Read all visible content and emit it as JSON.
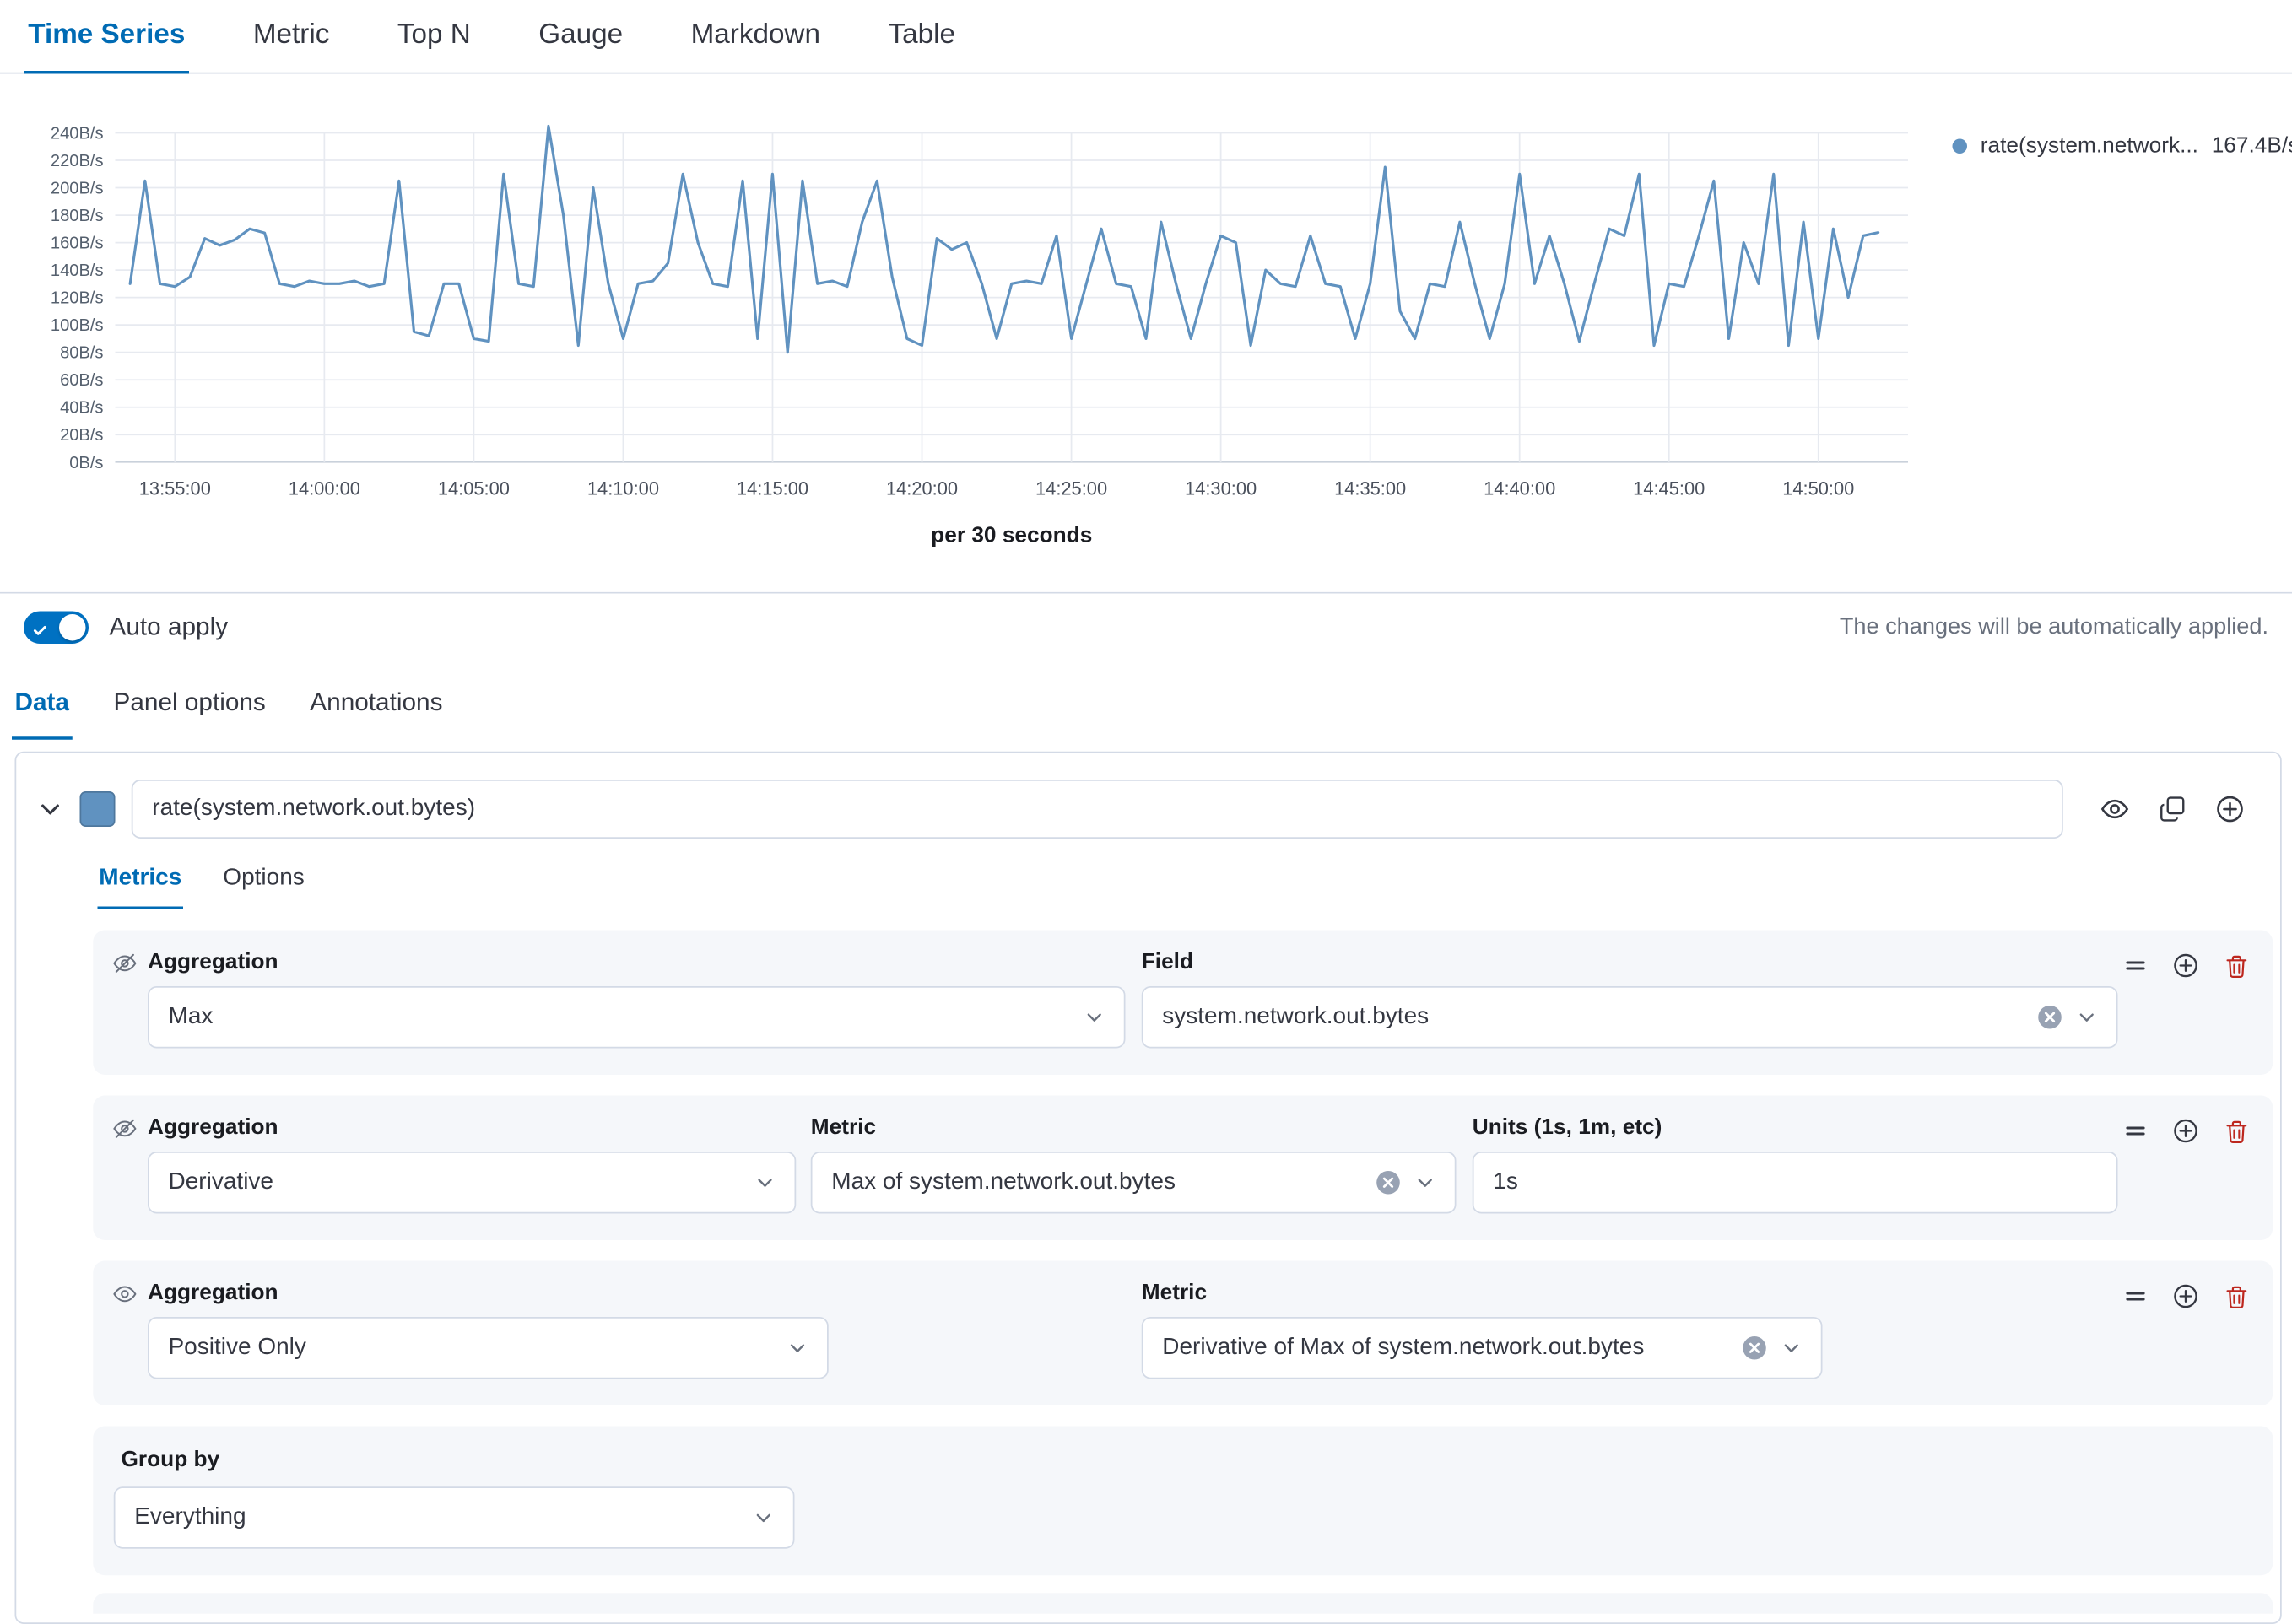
{
  "top_tabs": {
    "items": [
      {
        "label": "Time Series",
        "active": true
      },
      {
        "label": "Metric",
        "active": false
      },
      {
        "label": "Top N",
        "active": false
      },
      {
        "label": "Gauge",
        "active": false
      },
      {
        "label": "Markdown",
        "active": false
      },
      {
        "label": "Table",
        "active": false
      }
    ]
  },
  "chart": {
    "legend_name": "rate(system.network...",
    "legend_value": "167.4B/s",
    "interval_label": "per 30 seconds"
  },
  "chart_data": {
    "type": "line",
    "title": "",
    "grid": true,
    "legend_position": "right",
    "caption": "per 30 seconds",
    "x_axis": {
      "start": "13:53:00",
      "end": "14:53:00",
      "tick_labels": [
        "13:55:00",
        "14:00:00",
        "14:05:00",
        "14:10:00",
        "14:15:00",
        "14:20:00",
        "14:25:00",
        "14:30:00",
        "14:35:00",
        "14:40:00",
        "14:45:00",
        "14:50:00"
      ]
    },
    "y_axis": {
      "min": 0,
      "max": 240,
      "tick_step": 20,
      "tick_labels": [
        "0B/s",
        "20B/s",
        "40B/s",
        "60B/s",
        "80B/s",
        "100B/s",
        "120B/s",
        "140B/s",
        "160B/s",
        "180B/s",
        "200B/s",
        "220B/s",
        "240B/s"
      ]
    },
    "series": [
      {
        "name": "rate(system.network.out.bytes)",
        "unit": "B/s",
        "color": "#6092C0",
        "start_time": "13:53:30",
        "interval_seconds": 30,
        "values": [
          130,
          205,
          130,
          128,
          135,
          163,
          158,
          162,
          170,
          167,
          130,
          128,
          132,
          130,
          130,
          132,
          128,
          130,
          205,
          95,
          92,
          130,
          130,
          90,
          88,
          210,
          130,
          128,
          245,
          180,
          85,
          200,
          130,
          90,
          130,
          132,
          145,
          210,
          160,
          130,
          128,
          205,
          90,
          210,
          80,
          205,
          130,
          132,
          128,
          175,
          205,
          135,
          90,
          85,
          163,
          155,
          160,
          130,
          90,
          130,
          132,
          130,
          165,
          90,
          130,
          170,
          130,
          128,
          90,
          175,
          130,
          90,
          130,
          165,
          160,
          85,
          140,
          130,
          128,
          165,
          130,
          128,
          90,
          130,
          215,
          110,
          90,
          130,
          128,
          175,
          130,
          90,
          130,
          210,
          130,
          165,
          130,
          88,
          130,
          170,
          165,
          210,
          85,
          130,
          128,
          165,
          205,
          90,
          160,
          130,
          210,
          85,
          175,
          90,
          170,
          120,
          165,
          167.4
        ]
      }
    ]
  },
  "auto_apply": {
    "label": "Auto apply",
    "enabled": true,
    "note": "The changes will be automatically applied."
  },
  "editor_tabs": {
    "items": [
      {
        "label": "Data",
        "active": true
      },
      {
        "label": "Panel options",
        "active": false
      },
      {
        "label": "Annotations",
        "active": false
      }
    ]
  },
  "series_editor": {
    "color": "#6092C0",
    "query": "rate(system.network.out.bytes)",
    "tabs": {
      "items": [
        {
          "label": "Metrics",
          "active": true
        },
        {
          "label": "Options",
          "active": false
        }
      ]
    },
    "rows": [
      {
        "agg_label": "Aggregation",
        "agg_value": "Max",
        "field_label": "Field",
        "field_value": "system.network.out.bytes",
        "visible": false
      },
      {
        "agg_label": "Aggregation",
        "agg_value": "Derivative",
        "metric_label": "Metric",
        "metric_value": "Max of system.network.out.bytes",
        "units_label": "Units (1s, 1m, etc)",
        "units_value": "1s",
        "visible": false
      },
      {
        "agg_label": "Aggregation",
        "agg_value": "Positive Only",
        "metric_label": "Metric",
        "metric_value": "Derivative of Max of system.network.out.bytes",
        "visible": true
      }
    ],
    "group_by": {
      "label": "Group by",
      "value": "Everything"
    }
  },
  "icons": {
    "eye-icon": "visibility toggle",
    "eye-slash-icon": "hidden metric",
    "clone-icon": "clone series",
    "plus-circle-icon": "add",
    "trash-icon": "delete",
    "drag-handle-icon": "reorder",
    "chevron-down-icon": "expand",
    "clear-icon": "clear selection",
    "check-icon": "switch on"
  }
}
